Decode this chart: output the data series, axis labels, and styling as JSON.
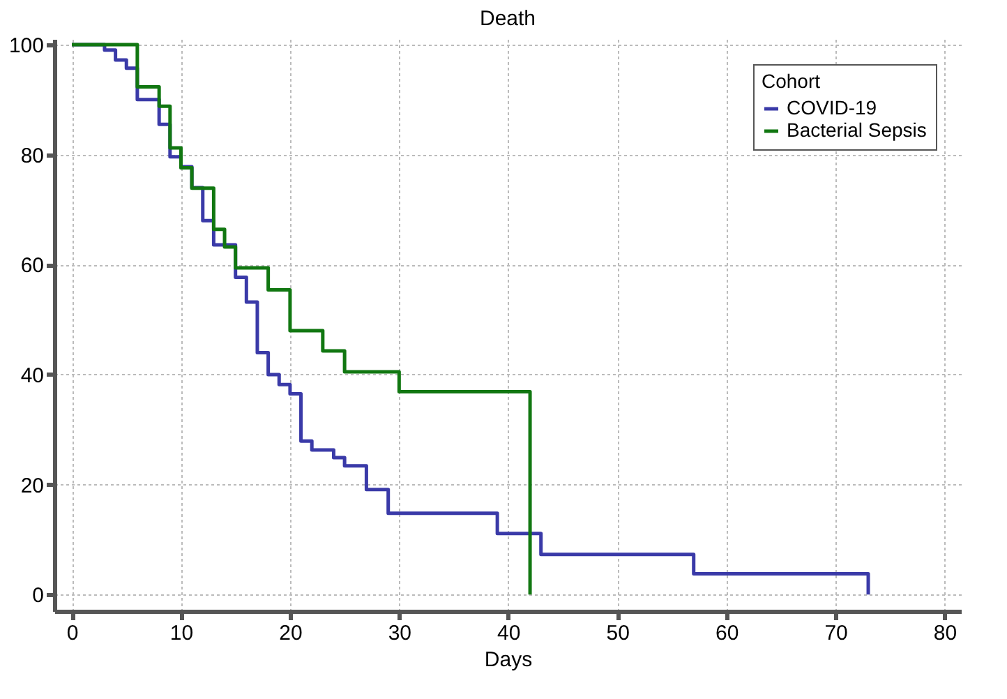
{
  "chart_data": {
    "type": "step",
    "title": "Death",
    "xlabel": "Days",
    "legend_title": "Cohort",
    "legend": "top right",
    "grid": true,
    "xlim": [
      -1.6,
      81.5
    ],
    "ylim": [
      -3,
      101
    ],
    "xticks": [
      0,
      10,
      20,
      30,
      40,
      50,
      60,
      70,
      80
    ],
    "yticks": [
      0,
      20,
      40,
      60,
      80,
      100
    ],
    "series": [
      {
        "name": "COVID-19",
        "color": "#3a3aa8",
        "x": [
          0,
          3,
          4,
          5,
          6,
          8,
          9,
          10,
          11,
          12,
          13,
          15,
          16,
          17,
          18,
          19,
          20,
          21,
          22,
          24,
          25,
          27,
          29,
          39,
          43,
          57,
          73
        ],
        "values": [
          100,
          99,
          97.2,
          95.7,
          90,
          85.5,
          79.6,
          77.8,
          74,
          68,
          63.6,
          57.7,
          53.2,
          44,
          40,
          38.2,
          36.5,
          27.9,
          26.3,
          24.9,
          23.4,
          19.1,
          14.8,
          11.1,
          7.3,
          3.8,
          0
        ]
      },
      {
        "name": "Bacterial Sepsis",
        "color": "#117711",
        "x": [
          0,
          6,
          8,
          9,
          10,
          11,
          13,
          14,
          15,
          18,
          20,
          23,
          25,
          30,
          42
        ],
        "values": [
          100,
          92.3,
          88.8,
          81.2,
          77.6,
          73.9,
          66.4,
          63.2,
          59.4,
          55.4,
          48,
          44.3,
          40.5,
          36.9,
          0
        ]
      }
    ]
  }
}
